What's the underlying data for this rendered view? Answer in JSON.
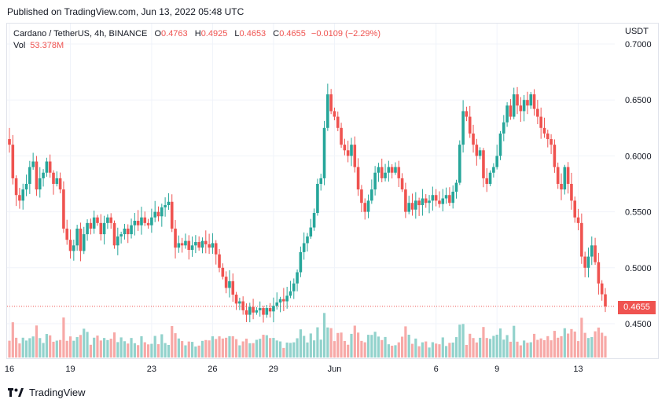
{
  "published": "Published on TradingView.com, Jun 13, 2022 05:48 UTC",
  "legend": {
    "symbol": "Cardano / TetherUS, 4h, BINANCE",
    "o_label": "O",
    "o_value": "0.4763",
    "h_label": "H",
    "h_value": "0.4925",
    "l_label": "L",
    "l_value": "0.4653",
    "c_label": "C",
    "c_value": "0.4655",
    "change": "−0.0109 (−2.29%)"
  },
  "volume": {
    "label": "Vol",
    "value": "53.378M"
  },
  "currency": "USDT",
  "last_price": "0.4655",
  "footer": {
    "brand": "TradingView"
  },
  "colors": {
    "up": "#26a69a",
    "down": "#ef5350",
    "vol_up": "#92d2cc",
    "vol_down": "#f7a9a7",
    "grid": "#f0f3fa"
  },
  "chart_data": {
    "type": "candlestick",
    "ylim": [
      0.44,
      0.7
    ],
    "y_ticks": [
      "0.7000",
      "0.6500",
      "0.6000",
      "0.5500",
      "0.5000",
      "0.4500"
    ],
    "x_ticks": [
      {
        "label": "16",
        "i": 0
      },
      {
        "label": "19",
        "i": 18
      },
      {
        "label": "23",
        "i": 42
      },
      {
        "label": "26",
        "i": 60
      },
      {
        "label": "29",
        "i": 78
      },
      {
        "label": "Jun",
        "i": 96
      },
      {
        "label": "6",
        "i": 126
      },
      {
        "label": "9",
        "i": 144
      },
      {
        "label": "13",
        "i": 168
      }
    ],
    "last_price": 0.4655,
    "closes": [
      0.61,
      0.58,
      0.565,
      0.56,
      0.57,
      0.575,
      0.59,
      0.595,
      0.57,
      0.58,
      0.585,
      0.595,
      0.585,
      0.575,
      0.58,
      0.57,
      0.535,
      0.525,
      0.515,
      0.52,
      0.535,
      0.515,
      0.53,
      0.54,
      0.535,
      0.545,
      0.54,
      0.53,
      0.54,
      0.545,
      0.54,
      0.52,
      0.528,
      0.53,
      0.535,
      0.53,
      0.538,
      0.542,
      0.538,
      0.545,
      0.54,
      0.538,
      0.545,
      0.55,
      0.546,
      0.554,
      0.556,
      0.559,
      0.535,
      0.518,
      0.522,
      0.52,
      0.524,
      0.516,
      0.52,
      0.523,
      0.518,
      0.524,
      0.521,
      0.518,
      0.522,
      0.512,
      0.5,
      0.492,
      0.482,
      0.488,
      0.476,
      0.468,
      0.47,
      0.462,
      0.458,
      0.465,
      0.46,
      0.462,
      0.464,
      0.458,
      0.464,
      0.461,
      0.466,
      0.469,
      0.472,
      0.47,
      0.475,
      0.479,
      0.486,
      0.496,
      0.514,
      0.522,
      0.528,
      0.536,
      0.549,
      0.575,
      0.58,
      0.625,
      0.655,
      0.64,
      0.635,
      0.625,
      0.61,
      0.605,
      0.6,
      0.61,
      0.59,
      0.57,
      0.558,
      0.55,
      0.56,
      0.57,
      0.585,
      0.59,
      0.58,
      0.585,
      0.59,
      0.585,
      0.59,
      0.58,
      0.57,
      0.55,
      0.558,
      0.552,
      0.56,
      0.556,
      0.562,
      0.558,
      0.56,
      0.565,
      0.56,
      0.557,
      0.562,
      0.565,
      0.558,
      0.568,
      0.576,
      0.61,
      0.64,
      0.635,
      0.62,
      0.61,
      0.6,
      0.605,
      0.58,
      0.575,
      0.585,
      0.59,
      0.6,
      0.62,
      0.63,
      0.645,
      0.635,
      0.655,
      0.645,
      0.64,
      0.65,
      0.645,
      0.655,
      0.642,
      0.635,
      0.625,
      0.62,
      0.615,
      0.61,
      0.59,
      0.575,
      0.57,
      0.59,
      0.575,
      0.56,
      0.545,
      0.54,
      0.51,
      0.5,
      0.51,
      0.52,
      0.505,
      0.486,
      0.4763,
      0.4655
    ]
  }
}
